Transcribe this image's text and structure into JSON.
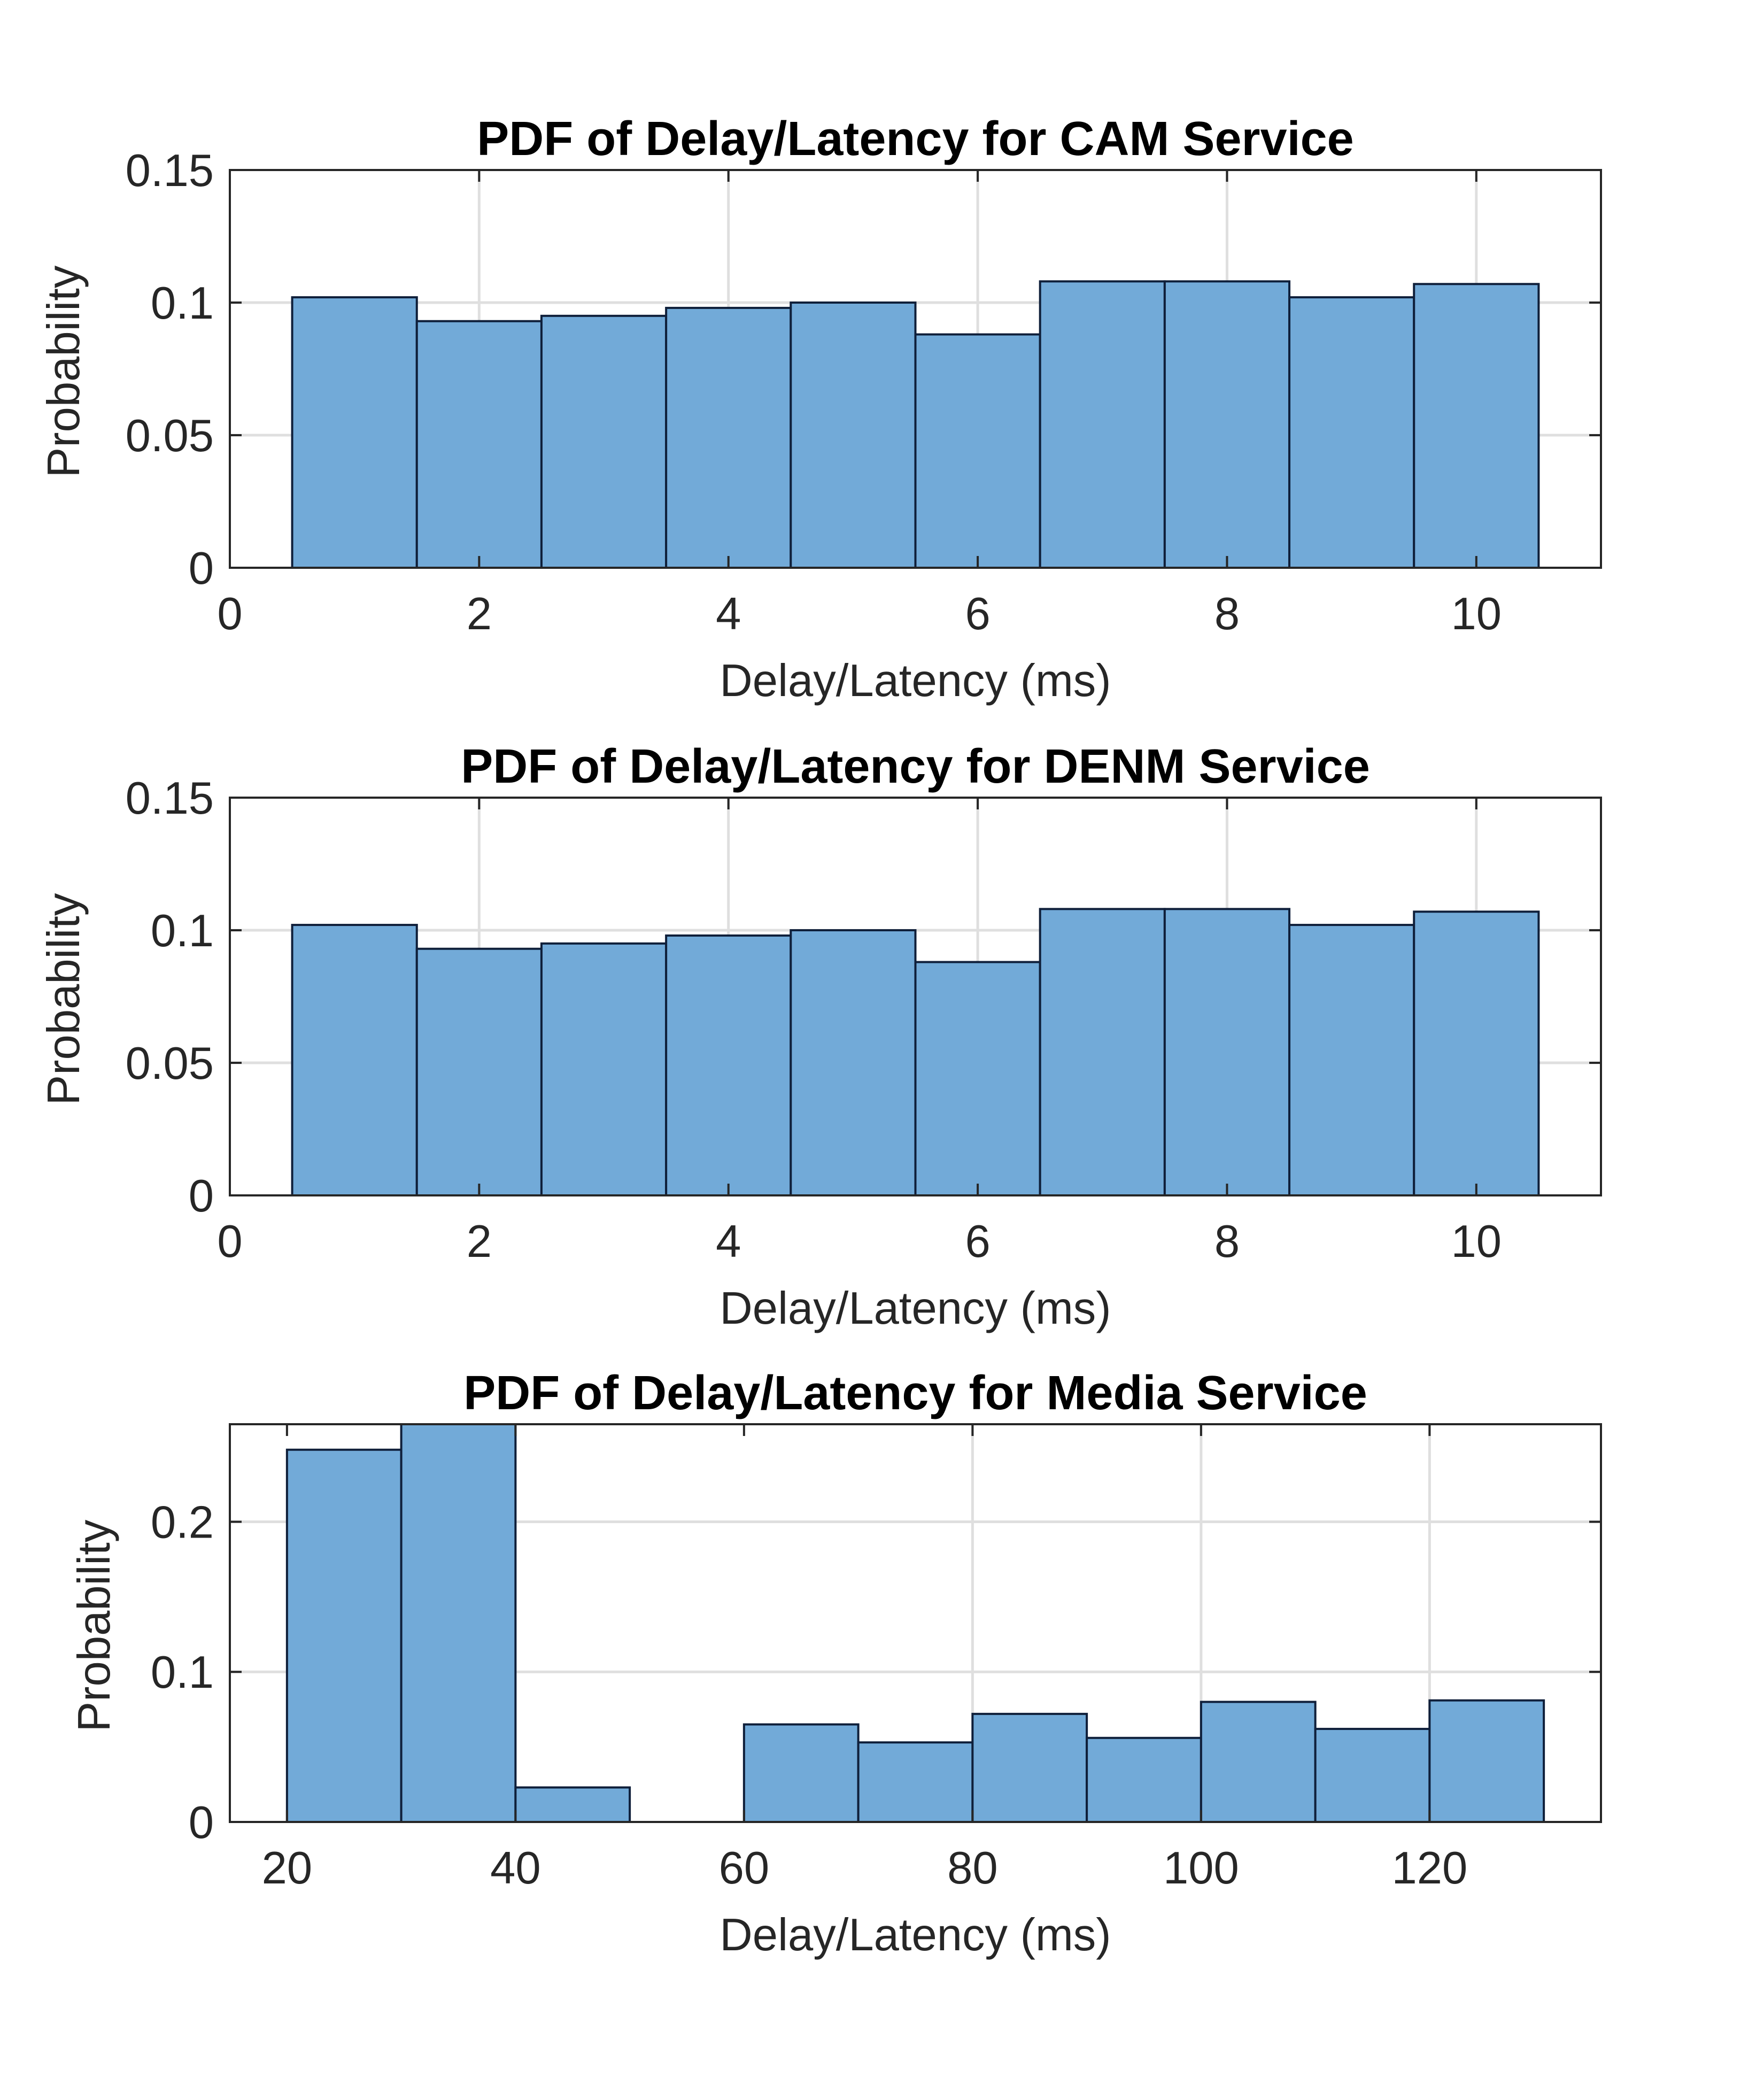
{
  "colors": {
    "bar_fill": "#72aad8",
    "bar_edge": "#0f1f3a",
    "axes": "#262626",
    "grid": "#dfdfdf",
    "background": "#ffffff"
  },
  "chart_data": [
    {
      "type": "bar",
      "title": "PDF of Delay/Latency for CAM Service",
      "xlabel": "Delay/Latency (ms)",
      "ylabel": "Probability",
      "xlim": [
        0,
        11
      ],
      "ylim": [
        0,
        0.15
      ],
      "xticks": [
        "0",
        "2",
        "4",
        "6",
        "8",
        "10"
      ],
      "yticks": [
        "0",
        "0.05",
        "0.1",
        "0.15"
      ],
      "grid": true,
      "bin_edges": [
        0.5,
        1.5,
        2.5,
        3.5,
        4.5,
        5.5,
        6.5,
        7.5,
        8.5,
        9.5,
        10.5
      ],
      "values": [
        0.102,
        0.093,
        0.095,
        0.098,
        0.1,
        0.088,
        0.108,
        0.108,
        0.102,
        0.107
      ]
    },
    {
      "type": "bar",
      "title": "PDF of Delay/Latency for DENM Service",
      "xlabel": "Delay/Latency (ms)",
      "ylabel": "Probability",
      "xlim": [
        0,
        11
      ],
      "ylim": [
        0,
        0.15
      ],
      "xticks": [
        "0",
        "2",
        "4",
        "6",
        "8",
        "10"
      ],
      "yticks": [
        "0",
        "0.05",
        "0.1",
        "0.15"
      ],
      "grid": true,
      "bin_edges": [
        0.5,
        1.5,
        2.5,
        3.5,
        4.5,
        5.5,
        6.5,
        7.5,
        8.5,
        9.5,
        10.5
      ],
      "values": [
        0.102,
        0.093,
        0.095,
        0.098,
        0.1,
        0.088,
        0.108,
        0.108,
        0.102,
        0.107
      ]
    },
    {
      "type": "bar",
      "title": "PDF of Delay/Latency for Media Service",
      "xlabel": "Delay/Latency (ms)",
      "ylabel": "Probability",
      "xlim": [
        15,
        135
      ],
      "ylim": [
        0,
        0.265
      ],
      "xticks": [
        "20",
        "40",
        "60",
        "80",
        "100",
        "120"
      ],
      "yticks": [
        "0",
        "0.1",
        "0.2"
      ],
      "grid": true,
      "bin_edges": [
        20,
        30,
        40,
        50,
        60,
        70,
        80,
        90,
        100,
        110,
        120,
        130
      ],
      "values": [
        0.248,
        0.265,
        0.023,
        0,
        0.065,
        0.053,
        0.072,
        0.056,
        0.08,
        0.062,
        0.081
      ]
    }
  ]
}
